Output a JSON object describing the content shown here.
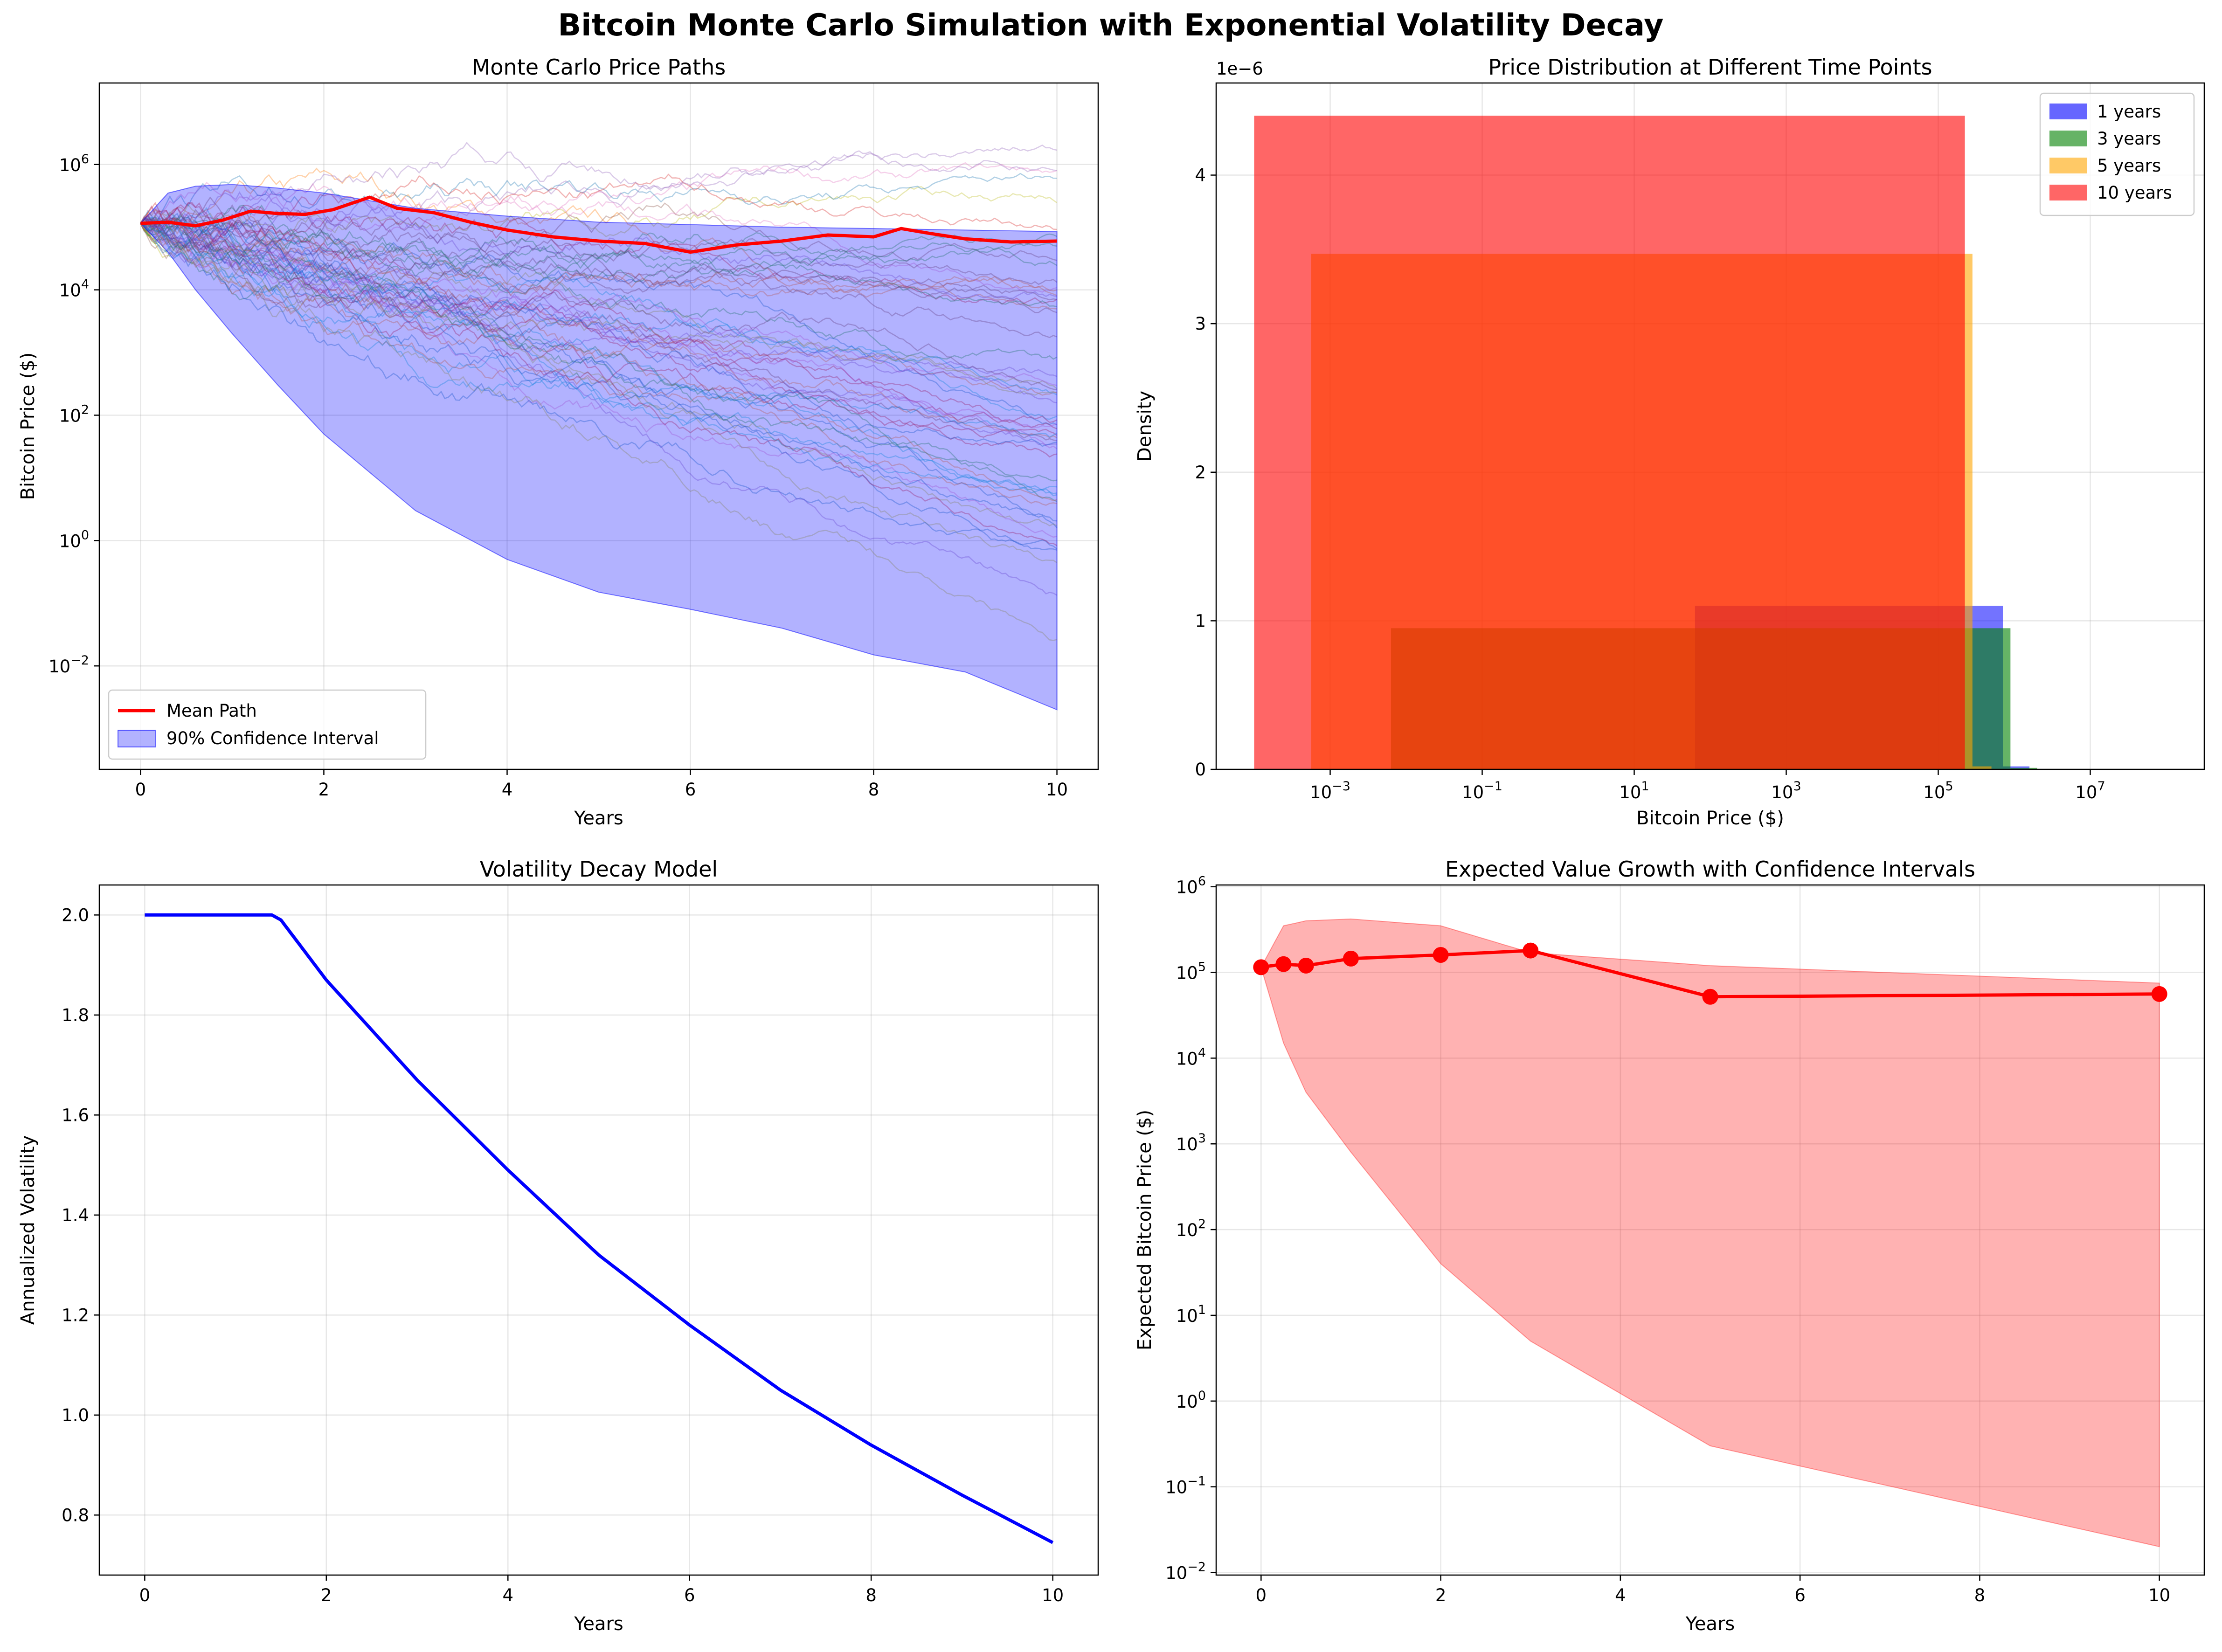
{
  "suptitle": "Bitcoin Monte Carlo Simulation with Exponential Volatility Decay",
  "chart_data": [
    {
      "id": "paths",
      "type": "line",
      "title": "Monte Carlo Price Paths",
      "xlabel": "Years",
      "ylabel": "Bitcoin Price ($)",
      "xlim": [
        -0.45,
        10.45
      ],
      "ylim_log10": [
        -3.65,
        7.3
      ],
      "yscale": "log",
      "xticks": [
        0,
        2,
        4,
        6,
        8,
        10
      ],
      "yticks_exp": [
        -2,
        0,
        2,
        4,
        6
      ],
      "legend_position": "lower-left",
      "grid": true,
      "mean_path": {
        "name": "Mean Path",
        "color": "#ff0000",
        "x": [
          0,
          0.3,
          0.6,
          0.9,
          1.2,
          1.5,
          1.8,
          2.1,
          2.5,
          2.8,
          3.2,
          3.6,
          4.0,
          4.5,
          5.0,
          5.5,
          6.0,
          6.5,
          7.0,
          7.5,
          8.0,
          8.3,
          8.6,
          9.0,
          9.5,
          10
        ],
        "y": [
          115000,
          120000,
          105000,
          130000,
          180000,
          165000,
          160000,
          190000,
          300000,
          200000,
          170000,
          120000,
          90000,
          70000,
          60000,
          55000,
          40000,
          52000,
          60000,
          75000,
          70000,
          95000,
          80000,
          65000,
          58000,
          60000
        ]
      },
      "confidence_interval": {
        "name": "90% Confidence Interval",
        "color": "#0000ff",
        "x": [
          0,
          0.3,
          0.6,
          1,
          1.5,
          2,
          3,
          4,
          5,
          6,
          7,
          8,
          9,
          10
        ],
        "upper": [
          115000,
          350000,
          450000,
          480000,
          420000,
          350000,
          200000,
          150000,
          120000,
          110000,
          100000,
          95000,
          90000,
          85000
        ],
        "lower": [
          115000,
          40000,
          10000,
          2000,
          300,
          50,
          3,
          0.5,
          0.15,
          0.08,
          0.04,
          0.015,
          0.008,
          0.002
        ]
      },
      "sample_paths_note_free": true
    },
    {
      "id": "hist",
      "type": "bar",
      "title": "Price Distribution at Different Time Points",
      "xlabel": "Bitcoin Price ($)",
      "ylabel": "Density",
      "xscale": "log",
      "xlim_log10": [
        -4.5,
        8.5
      ],
      "ylim": [
        0,
        4.62
      ],
      "yscale_multiplier": "1e−6",
      "xticks_exp": [
        -3,
        -1,
        1,
        3,
        5,
        7
      ],
      "yticks": [
        0,
        1,
        2,
        3,
        4
      ],
      "legend_position": "top-right",
      "grid": true,
      "series": [
        {
          "name": "1 years",
          "color": "#0000ff",
          "bins": [
            [
              1.8,
              5.85,
              1.1
            ],
            [
              5.85,
              6.2,
              0.02
            ]
          ]
        },
        {
          "name": "3 years",
          "color": "#008000",
          "bins": [
            [
              -2.2,
              5.95,
              0.95
            ],
            [
              5.95,
              6.3,
              0.01
            ]
          ]
        },
        {
          "name": "5 years",
          "color": "#ffa500",
          "bins": [
            [
              -3.25,
              5.45,
              3.47
            ],
            [
              5.45,
              5.7,
              0.02
            ]
          ]
        },
        {
          "name": "10 years",
          "color": "#ff0000",
          "bins": [
            [
              -4.0,
              5.35,
              4.4
            ]
          ]
        }
      ]
    },
    {
      "id": "vol",
      "type": "line",
      "title": "Volatility Decay Model",
      "xlabel": "Years",
      "ylabel": "Annualized Volatility",
      "xlim": [
        -0.5,
        10.5
      ],
      "ylim": [
        0.68,
        2.06
      ],
      "xticks": [
        0,
        2,
        4,
        6,
        8,
        10
      ],
      "yticks": [
        0.8,
        1.0,
        1.2,
        1.4,
        1.6,
        1.8,
        2.0
      ],
      "grid": true,
      "series": [
        {
          "color": "#0000ff",
          "x": [
            0,
            1.4,
            1.5,
            2,
            3,
            4,
            5,
            6,
            7,
            8,
            9,
            10
          ],
          "y": [
            2.0,
            2.0,
            1.99,
            1.87,
            1.67,
            1.49,
            1.32,
            1.18,
            1.05,
            0.94,
            0.84,
            0.745
          ]
        }
      ]
    },
    {
      "id": "expected",
      "type": "line",
      "title": "Expected Value Growth with Confidence Intervals",
      "xlabel": "Years",
      "ylabel": "Expected Bitcoin Price ($)",
      "yscale": "log",
      "xlim": [
        -0.5,
        10.5
      ],
      "ylim_log10": [
        -2.03,
        6.02
      ],
      "xticks": [
        0,
        2,
        4,
        6,
        8,
        10
      ],
      "yticks_exp": [
        -2,
        -1,
        0,
        1,
        2,
        3,
        4,
        5,
        6
      ],
      "grid": true,
      "series": [
        {
          "color": "#ff0000",
          "x": [
            0,
            0.25,
            0.5,
            1,
            2,
            3,
            5,
            10
          ],
          "y": [
            115000,
            125000,
            120000,
            145000,
            160000,
            180000,
            52000,
            56000
          ]
        }
      ],
      "band": {
        "color": "#ff0000",
        "x": [
          0,
          0.25,
          0.5,
          1,
          2,
          3,
          5,
          10
        ],
        "upper": [
          115000,
          350000,
          400000,
          420000,
          350000,
          170000,
          120000,
          75000
        ],
        "lower": [
          115000,
          15000,
          4000,
          800,
          40,
          5,
          0.3,
          0.02
        ]
      }
    }
  ]
}
